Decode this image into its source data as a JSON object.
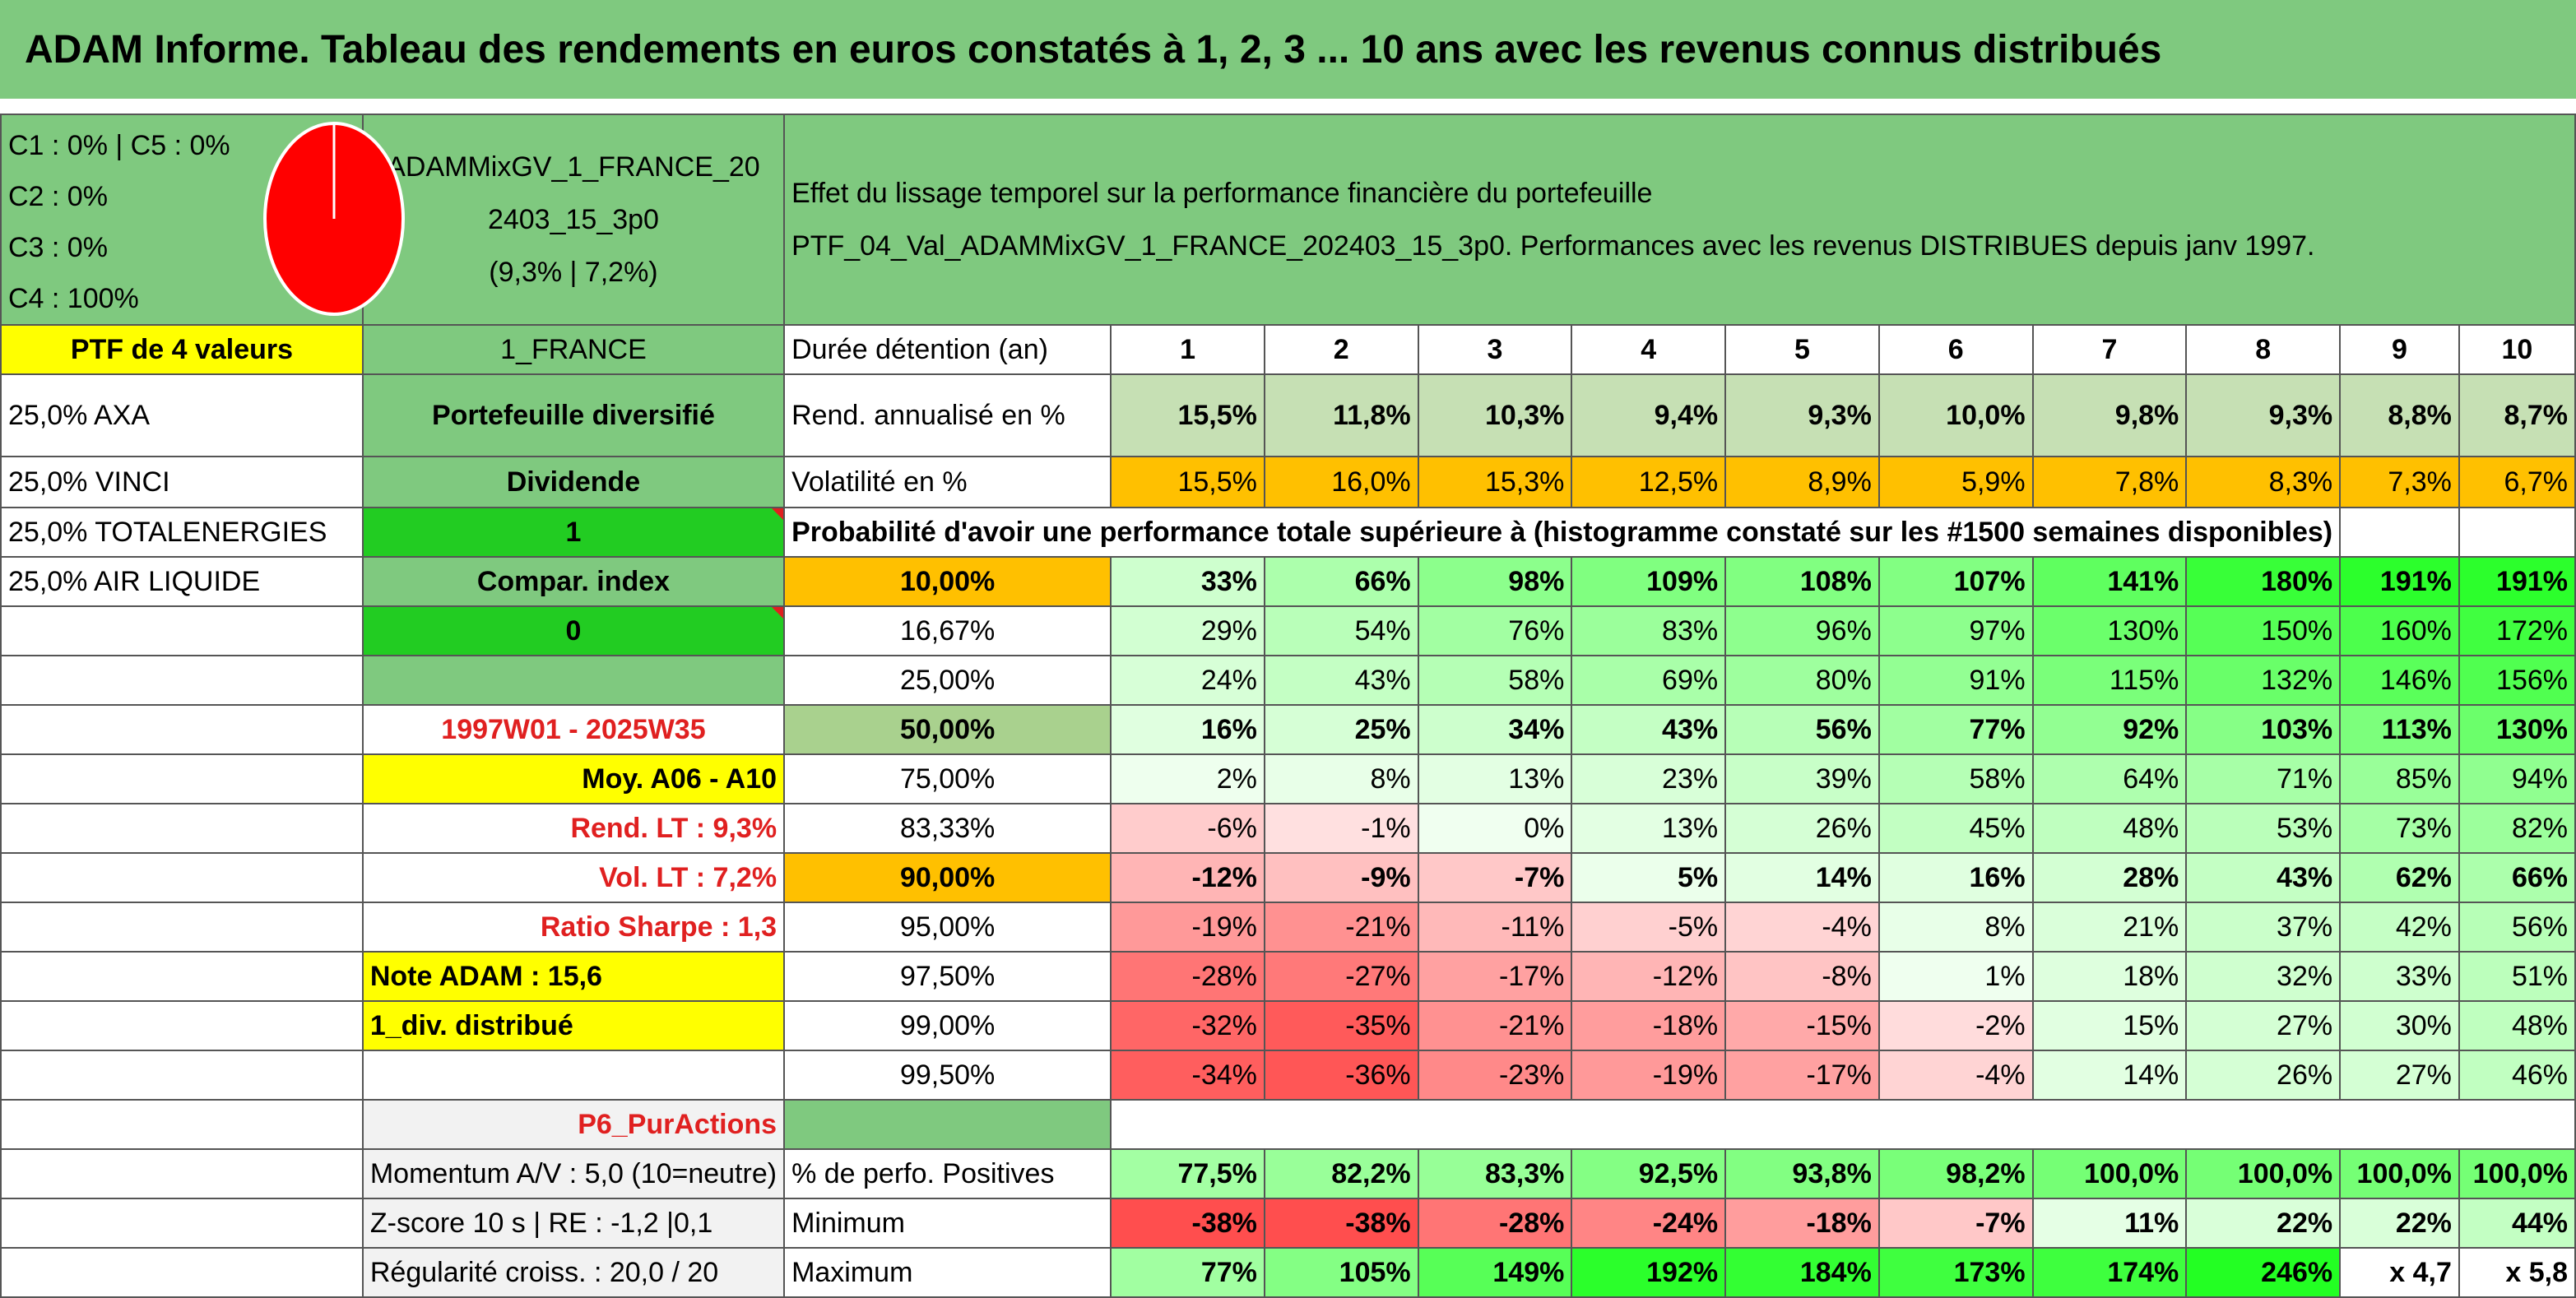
{
  "title": "ADAM Informe. Tableau des rendements en euros constatés à 1, 2, 3 ... 10 ans avec les revenus connus distribués",
  "composition": [
    "C1 : 0% | C5 : 0%",
    "C2 : 0%",
    "C3 : 0%",
    "C4 : 100%"
  ],
  "pie_color": "#ff0000",
  "portfolio_name": [
    "ADAMMixGV_1_FRANCE_20",
    "2403_15_3p0",
    "(9,3% | 7,2%)"
  ],
  "description": [
    "Effet du lissage temporel sur la performance financière du portefeuille",
    "PTF_04_Val_ADAMMixGV_1_FRANCE_202403_15_3p0. Performances avec les revenus DISTRIBUES depuis janv 1997."
  ],
  "ptf_count": "PTF de 4 valeurs",
  "region": "1_FRANCE",
  "holding_label": "Durée détention (an)",
  "years": [
    "1",
    "2",
    "3",
    "4",
    "5",
    "6",
    "7",
    "8",
    "9",
    "10"
  ],
  "holdings": [
    "25,0% AXA",
    "25,0% VINCI",
    "25,0% TOTALENERGIES",
    "25,0% AIR LIQUIDE"
  ],
  "type_label": "Portefeuille diversifié",
  "dividend_label": "Dividende",
  "dividend_value": "1",
  "compar_label": "Compar. index",
  "compar_value": "0",
  "period": "1997W01 - 2025W35",
  "moy": "Moy. A06 - A10",
  "rend_lt": "Rend. LT : 9,3%",
  "vol_lt": "Vol. LT : 7,2%",
  "sharpe": "Ratio Sharpe : 1,3",
  "note": "Note ADAM : 15,6",
  "div_distrib": "1_div. distribué",
  "strategy": "P6_PurActions",
  "momentum": "Momentum A/V : 5,0 (10=neutre)",
  "zscore": "Z-score 10 s | RE : -1,2 |0,1",
  "regularite": "Régularité croiss. : 20,0 / 20",
  "rend_label": "Rend. annualisé en %",
  "rend": [
    "15,5%",
    "11,8%",
    "10,3%",
    "9,4%",
    "9,3%",
    "10,0%",
    "9,8%",
    "9,3%",
    "8,8%",
    "8,7%"
  ],
  "vol_label": "Volatilité en %",
  "vol": [
    "15,5%",
    "16,0%",
    "15,3%",
    "12,5%",
    "8,9%",
    "5,9%",
    "7,8%",
    "8,3%",
    "7,3%",
    "6,7%"
  ],
  "prob_label": "Probabilité d'avoir une performance totale supérieure à (histogramme constaté sur les #1500 semaines disponibles)",
  "prob_rows": [
    {
      "p": "10,00%",
      "v": [
        "33%",
        "66%",
        "98%",
        "109%",
        "108%",
        "107%",
        "141%",
        "180%",
        "191%",
        "191%"
      ]
    },
    {
      "p": "16,67%",
      "v": [
        "29%",
        "54%",
        "76%",
        "83%",
        "96%",
        "97%",
        "130%",
        "150%",
        "160%",
        "172%"
      ]
    },
    {
      "p": "25,00%",
      "v": [
        "24%",
        "43%",
        "58%",
        "69%",
        "80%",
        "91%",
        "115%",
        "132%",
        "146%",
        "156%"
      ]
    },
    {
      "p": "50,00%",
      "v": [
        "16%",
        "25%",
        "34%",
        "43%",
        "56%",
        "77%",
        "92%",
        "103%",
        "113%",
        "130%"
      ]
    },
    {
      "p": "75,00%",
      "v": [
        "2%",
        "8%",
        "13%",
        "23%",
        "39%",
        "58%",
        "64%",
        "71%",
        "85%",
        "94%"
      ]
    },
    {
      "p": "83,33%",
      "v": [
        "-6%",
        "-1%",
        "0%",
        "13%",
        "26%",
        "45%",
        "48%",
        "53%",
        "73%",
        "82%"
      ]
    },
    {
      "p": "90,00%",
      "v": [
        "-12%",
        "-9%",
        "-7%",
        "5%",
        "14%",
        "16%",
        "28%",
        "43%",
        "62%",
        "66%"
      ]
    },
    {
      "p": "95,00%",
      "v": [
        "-19%",
        "-21%",
        "-11%",
        "-5%",
        "-4%",
        "8%",
        "21%",
        "37%",
        "42%",
        "56%"
      ]
    },
    {
      "p": "97,50%",
      "v": [
        "-28%",
        "-27%",
        "-17%",
        "-12%",
        "-8%",
        "1%",
        "18%",
        "32%",
        "33%",
        "51%"
      ]
    },
    {
      "p": "99,00%",
      "v": [
        "-32%",
        "-35%",
        "-21%",
        "-18%",
        "-15%",
        "-2%",
        "15%",
        "27%",
        "30%",
        "48%"
      ]
    },
    {
      "p": "99,50%",
      "v": [
        "-34%",
        "-36%",
        "-23%",
        "-19%",
        "-17%",
        "-4%",
        "14%",
        "26%",
        "27%",
        "46%"
      ]
    }
  ],
  "pos_label": "% de perfo. Positives",
  "pos": [
    "77,5%",
    "82,2%",
    "83,3%",
    "92,5%",
    "93,8%",
    "98,2%",
    "100,0%",
    "100,0%",
    "100,0%",
    "100,0%"
  ],
  "min_label": "Minimum",
  "min": [
    "-38%",
    "-38%",
    "-28%",
    "-24%",
    "-18%",
    "-7%",
    "11%",
    "22%",
    "22%",
    "44%"
  ],
  "max_label": "Maximum",
  "max": [
    "77%",
    "105%",
    "149%",
    "192%",
    "184%",
    "173%",
    "174%",
    "246%",
    "x 4,7",
    "x 5,8"
  ]
}
